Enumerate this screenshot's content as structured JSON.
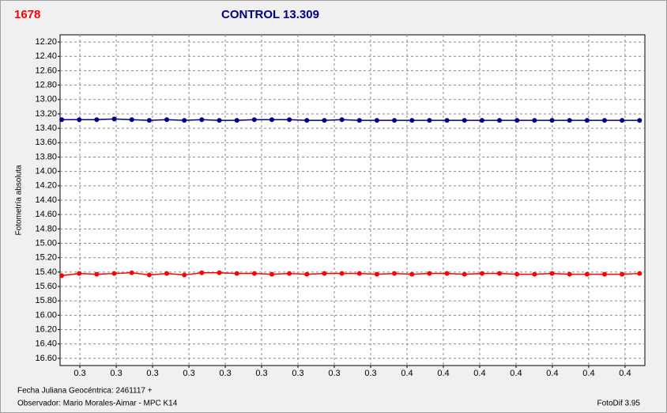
{
  "chart_data": {
    "type": "line",
    "object_id": "1678",
    "title": "CONTROL 13.309",
    "y_label": "Fotometría absoluta",
    "footer": [
      "Fecha Juliana Geocéntrica: 2461117 +",
      "Observador: Mario Morales-Aimar - MPC K14"
    ],
    "version": "FotoDif 3.95",
    "y_inverted": true,
    "grid": true,
    "xlim": [
      0.249,
      0.426
    ],
    "ylim": [
      12.1,
      16.7
    ],
    "yticks": [
      {
        "value": 12.2,
        "label": "12.20"
      },
      {
        "value": 12.4,
        "label": "12.40"
      },
      {
        "value": 12.6,
        "label": "12.60"
      },
      {
        "value": 12.8,
        "label": "12.80"
      },
      {
        "value": 13.0,
        "label": "13.00"
      },
      {
        "value": 13.2,
        "label": "13.20"
      },
      {
        "value": 13.4,
        "label": "13.40"
      },
      {
        "value": 13.6,
        "label": "13.60"
      },
      {
        "value": 13.8,
        "label": "13.80"
      },
      {
        "value": 14.0,
        "label": "14.00"
      },
      {
        "value": 14.2,
        "label": "14.20"
      },
      {
        "value": 14.4,
        "label": "14.40"
      },
      {
        "value": 14.6,
        "label": "14.60"
      },
      {
        "value": 14.8,
        "label": "14.80"
      },
      {
        "value": 15.0,
        "label": "15.00"
      },
      {
        "value": 15.2,
        "label": "15.20"
      },
      {
        "value": 15.4,
        "label": "15.40"
      },
      {
        "value": 15.6,
        "label": "15.60"
      },
      {
        "value": 15.8,
        "label": "15.80"
      },
      {
        "value": 16.0,
        "label": "16.00"
      },
      {
        "value": 16.2,
        "label": "16.20"
      },
      {
        "value": 16.4,
        "label": "16.40"
      },
      {
        "value": 16.6,
        "label": "16.60"
      }
    ],
    "xticks": [
      {
        "value": 0.255,
        "label": "0.3"
      },
      {
        "value": 0.266,
        "label": "0.3"
      },
      {
        "value": 0.277,
        "label": "0.3"
      },
      {
        "value": 0.288,
        "label": "0.3"
      },
      {
        "value": 0.299,
        "label": "0.3"
      },
      {
        "value": 0.31,
        "label": "0.3"
      },
      {
        "value": 0.321,
        "label": "0.3"
      },
      {
        "value": 0.332,
        "label": "0.3"
      },
      {
        "value": 0.343,
        "label": "0.3"
      },
      {
        "value": 0.354,
        "label": "0.4"
      },
      {
        "value": 0.365,
        "label": "0.4"
      },
      {
        "value": 0.376,
        "label": "0.4"
      },
      {
        "value": 0.387,
        "label": "0.4"
      },
      {
        "value": 0.398,
        "label": "0.4"
      },
      {
        "value": 0.409,
        "label": "0.4"
      },
      {
        "value": 0.42,
        "label": "0.4"
      }
    ],
    "x": [
      0.2495,
      0.2548,
      0.2601,
      0.2654,
      0.2707,
      0.276,
      0.2813,
      0.2866,
      0.2919,
      0.2972,
      0.3025,
      0.3078,
      0.3131,
      0.3184,
      0.3237,
      0.329,
      0.3343,
      0.3396,
      0.3449,
      0.3502,
      0.3555,
      0.3608,
      0.3661,
      0.3714,
      0.3767,
      0.382,
      0.3873,
      0.3926,
      0.3979,
      0.4032,
      0.4085,
      0.4138,
      0.4191,
      0.4244
    ],
    "series": [
      {
        "color": "#000080",
        "values": [
          13.28,
          13.28,
          13.28,
          13.27,
          13.28,
          13.29,
          13.28,
          13.29,
          13.28,
          13.29,
          13.29,
          13.28,
          13.28,
          13.28,
          13.29,
          13.29,
          13.28,
          13.29,
          13.29,
          13.29,
          13.29,
          13.29,
          13.29,
          13.29,
          13.29,
          13.29,
          13.29,
          13.29,
          13.29,
          13.29,
          13.29,
          13.29,
          13.29,
          13.29
        ]
      },
      {
        "color": "#ff0000",
        "values": [
          15.45,
          15.42,
          15.43,
          15.42,
          15.41,
          15.44,
          15.42,
          15.44,
          15.41,
          15.41,
          15.42,
          15.42,
          15.43,
          15.42,
          15.43,
          15.42,
          15.42,
          15.42,
          15.43,
          15.42,
          15.43,
          15.42,
          15.42,
          15.43,
          15.42,
          15.42,
          15.43,
          15.43,
          15.42,
          15.43,
          15.43,
          15.43,
          15.43,
          15.42
        ]
      }
    ]
  }
}
